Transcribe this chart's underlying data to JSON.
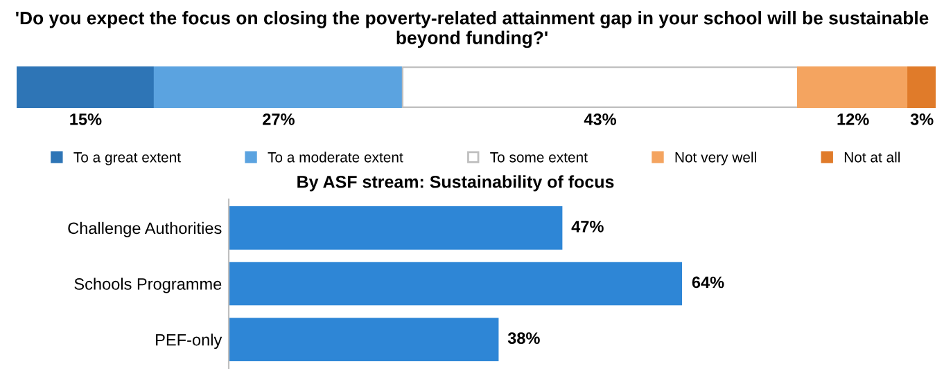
{
  "chart_data": [
    {
      "type": "bar",
      "title": "'Do you expect the focus on closing the poverty-related attainment gap in your school will be sustainable beyond funding?'",
      "orientation": "horizontal",
      "stacked": true,
      "categories": [
        null
      ],
      "legend": "bottom",
      "series": [
        {
          "name": "To a great extent",
          "color": "#2e75b6",
          "values": [
            15
          ],
          "value_labels": [
            "15%"
          ]
        },
        {
          "name": "To a moderate extent",
          "color": "#5ba3e0",
          "values": [
            27
          ],
          "value_labels": [
            "27%"
          ]
        },
        {
          "name": "To some extent",
          "color": "#ffffff",
          "values": [
            43
          ],
          "value_labels": [
            "43%"
          ]
        },
        {
          "name": "Not very well",
          "color": "#f4a460",
          "values": [
            12
          ],
          "value_labels": [
            "12%"
          ]
        },
        {
          "name": "Not at all",
          "color": "#e07b2a",
          "values": [
            3
          ],
          "value_labels": [
            "3%"
          ]
        }
      ]
    },
    {
      "type": "bar",
      "title": "By ASF stream: Sustainability of focus",
      "orientation": "horizontal",
      "categories": [
        "Challenge Authorities",
        "Schools Programme",
        "PEF-only"
      ],
      "values": [
        47,
        64,
        38
      ],
      "value_labels": [
        "47%",
        "64%",
        "38%"
      ],
      "color": "#2e86d6"
    }
  ]
}
